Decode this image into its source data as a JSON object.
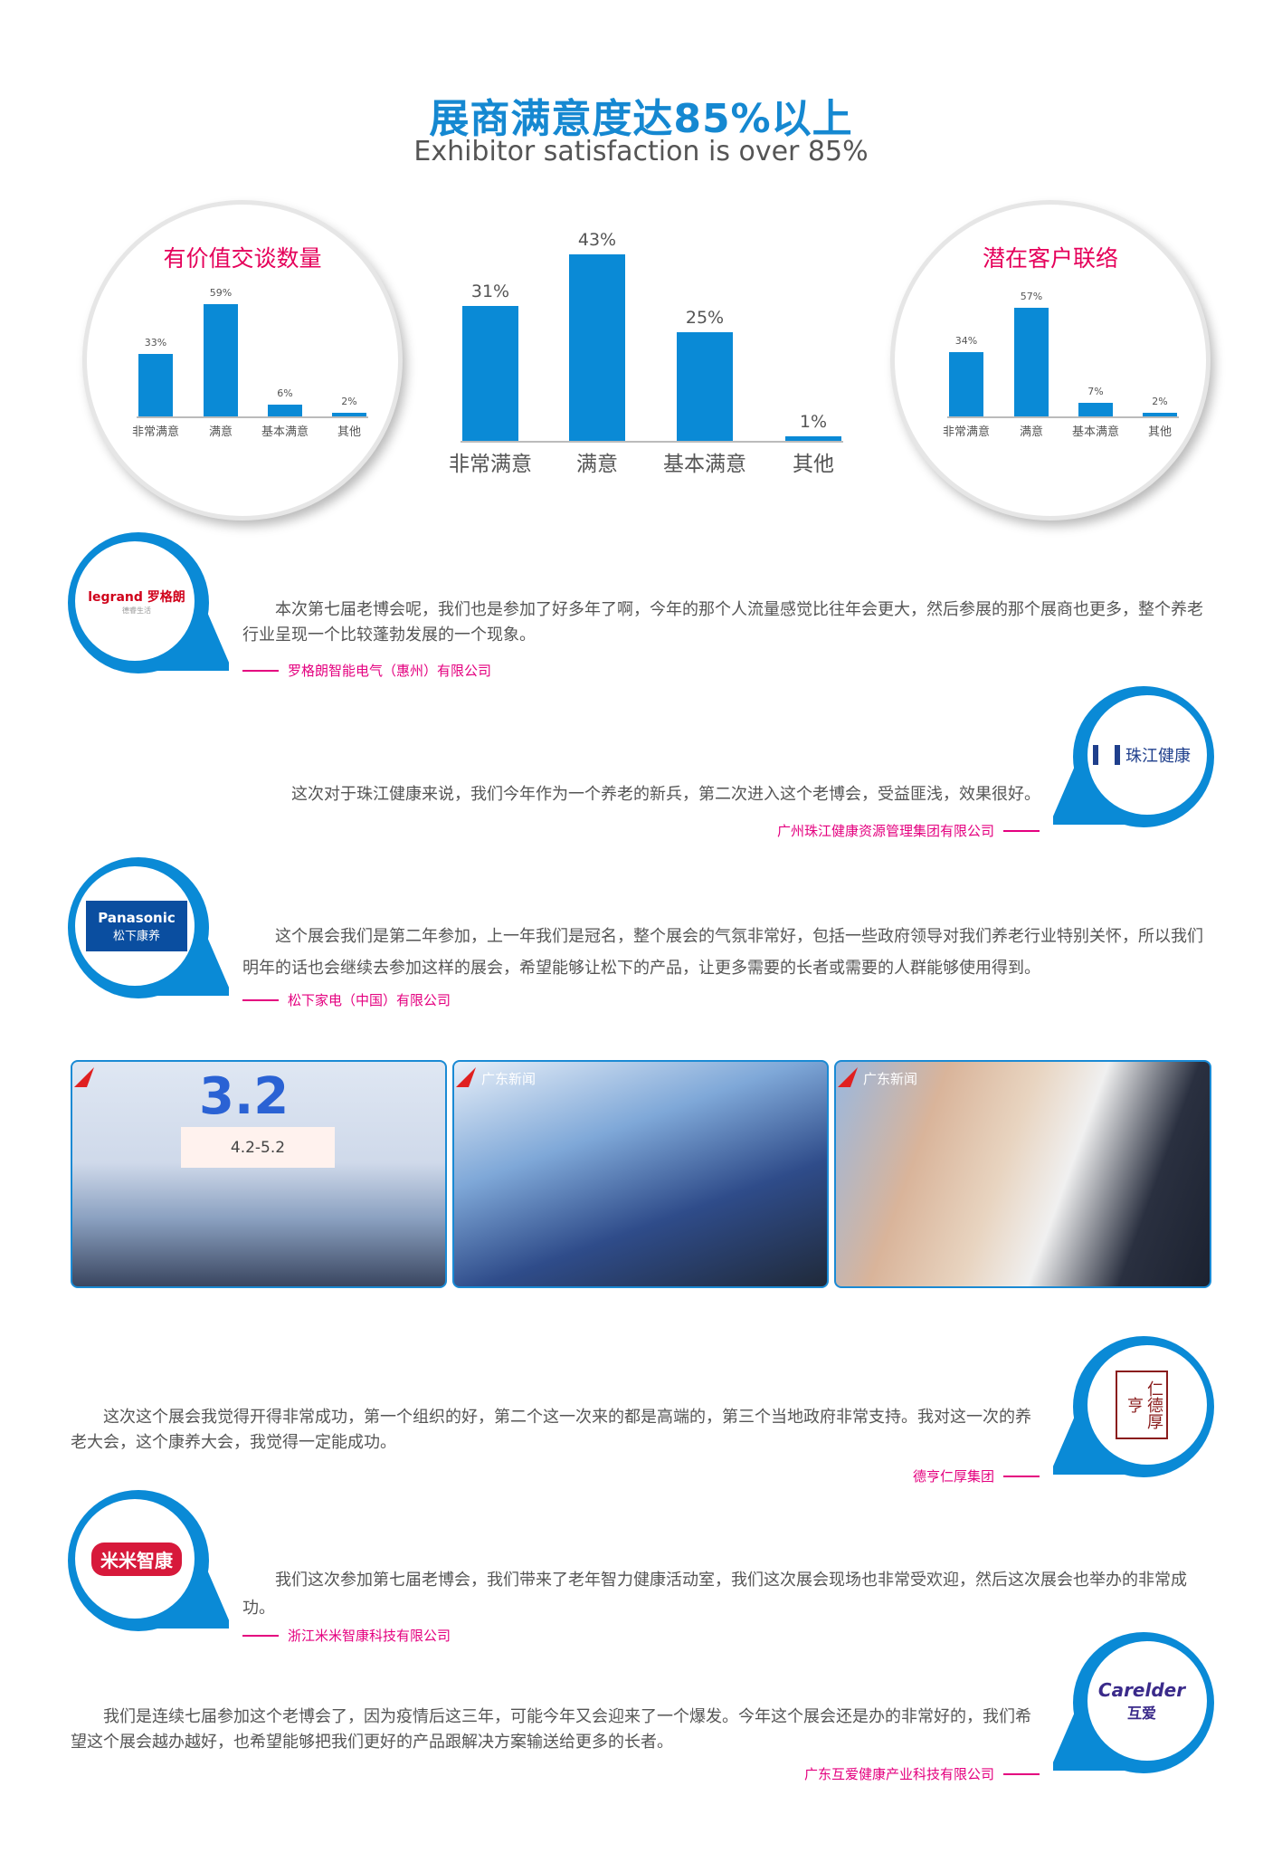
{
  "header": {
    "title": "展商满意度达85%以上",
    "subtitle": "Exhibitor satisfaction is over 85%"
  },
  "colors": {
    "accent_blue": "#0a8ad6",
    "accent_pink": "#e4007f",
    "text": "#555555"
  },
  "chart_data": [
    {
      "type": "bar",
      "title": "有价值交谈数量",
      "categories": [
        "非常满意",
        "满意",
        "基本满意",
        "其他"
      ],
      "values": [
        33,
        59,
        6,
        2
      ],
      "labels": [
        "33%",
        "59%",
        "6%",
        "2%"
      ],
      "xlabel": "",
      "ylabel": "",
      "grid": false
    },
    {
      "type": "bar",
      "title": "",
      "categories": [
        "非常满意",
        "满意",
        "基本满意",
        "其他"
      ],
      "values": [
        31,
        43,
        25,
        1
      ],
      "labels": [
        "31%",
        "43%",
        "25%",
        "1%"
      ],
      "xlabel": "",
      "ylabel": "",
      "grid": false
    },
    {
      "type": "bar",
      "title": "潜在客户联络",
      "categories": [
        "非常满意",
        "满意",
        "基本满意",
        "其他"
      ],
      "values": [
        34,
        57,
        7,
        2
      ],
      "labels": [
        "34%",
        "57%",
        "7%",
        "2%"
      ],
      "xlabel": "",
      "ylabel": "",
      "grid": false
    }
  ],
  "testimonials": [
    {
      "logo": "legrand 罗格朗",
      "logo_sub": "德睿生活",
      "text": "本次第七届老博会呢，我们也是参加了好多年了啊，今年的那个人流量感觉比往年会更大，然后参展的那个展商也更多，整个养老行业呈现一个比较蓬勃发展的一个现象。",
      "company": "罗格朗智能电气（惠州）有限公司"
    },
    {
      "logo": "珠江健康",
      "logo_sub": "",
      "text": "这次对于珠江健康来说，我们今年作为一个养老的新兵，第二次进入这个老博会，受益匪浅，效果很好。",
      "company": "广州珠江健康资源管理集团有限公司"
    },
    {
      "logo": "Panasonic",
      "logo_sub": "松下康养",
      "text": "这个展会我们是第二年参加，上一年我们是冠名，整个展会的气氛非常好，包括一些政府领导对我们养老行业特别关怀，所以我们明年的话也会继续去参加这样的展会，希望能够让松下的产品，让更多需要的长者或需要的人群能够使用得到。",
      "company": "松下家电（中国）有限公司"
    },
    {
      "logo": "仁德厚亨",
      "logo_sub": "",
      "text": "这次这个展会我觉得开得非常成功，第一个组织的好，第二个这一次来的都是高端的，第三个当地政府非常支持。我对这一次的养老大会，这个康养大会，我觉得一定能成功。",
      "company": "德亨仁厚集团"
    },
    {
      "logo": "米米智康",
      "logo_sub": "",
      "text": "我们这次参加第七届老博会，我们带来了老年智力健康活动室，我们这次展会现场也非常受欢迎，然后这次展会也举办的非常成功。",
      "company": "浙江米米智康科技有限公司"
    },
    {
      "logo": "Carelder",
      "logo_sub": "互爱",
      "text": "我们是连续七届参加这个老博会了，因为疫情后这三年，可能今年又会迎来了一个爆发。今年这个展会还是办的非常好的，我们希望这个展会越办越好，也希望能够把我们更好的产品跟解决方案输送给更多的长者。",
      "company": "广东互爱健康产业科技有限公司"
    }
  ],
  "photos": [
    {
      "overlay": "3.2",
      "sign": "4.2-5.2"
    },
    {
      "overlay": "广东新闻"
    },
    {
      "overlay": "广东新闻"
    }
  ]
}
